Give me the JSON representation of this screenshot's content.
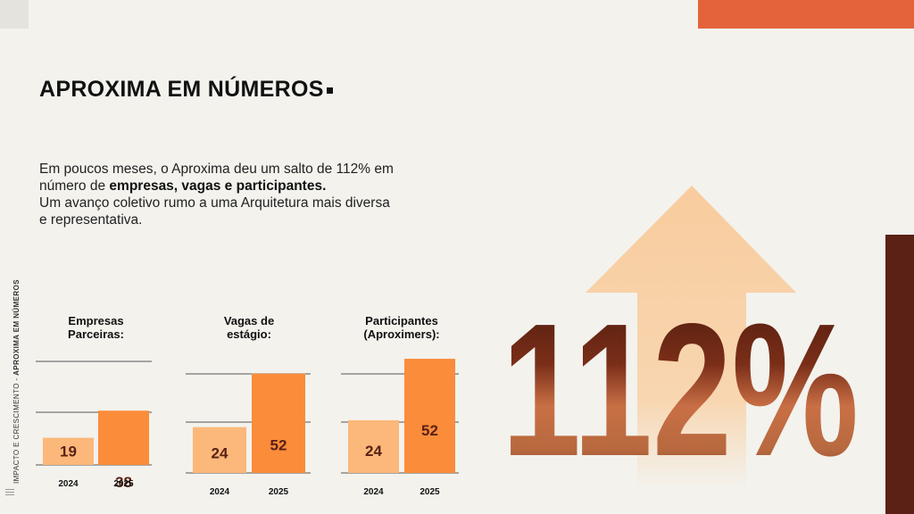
{
  "header": {
    "title": "APROXIMA EM NÚMEROS",
    "side_label_light": "IMPACTO E CRESCIMENTO - ",
    "side_label_bold": "APROXIMA EM NÚMEROS"
  },
  "description": {
    "line1": "Em poucos meses, o Aproxima deu um salto de 112% em",
    "line2_prefix": "número de ",
    "line2_bold": "empresas, vagas e participantes.",
    "line3": "Um avanço coletivo rumo a uma Arquitetura mais diversa",
    "line4": "e representativa."
  },
  "highlight": {
    "value": "112%"
  },
  "colors": {
    "accent_orange": "#e5633b",
    "bar_2024": "#fbb87a",
    "bar_2025": "#fb8c3a",
    "dark_brown": "#5a2114",
    "arrow": "#f8cc9e"
  },
  "chart_data": [
    {
      "type": "bar",
      "title": [
        "Empresas",
        "Parceiras:"
      ],
      "categories": [
        "2024",
        "2025"
      ],
      "values": [
        19,
        38
      ]
    },
    {
      "type": "bar",
      "title": [
        "Vagas de",
        "estágio:"
      ],
      "categories": [
        "2024",
        "2025"
      ],
      "values": [
        24,
        52
      ]
    },
    {
      "type": "bar",
      "title": [
        "Participantes",
        "(Aproximers):"
      ],
      "categories": [
        "2024",
        "2025"
      ],
      "values": [
        24,
        52
      ]
    }
  ]
}
